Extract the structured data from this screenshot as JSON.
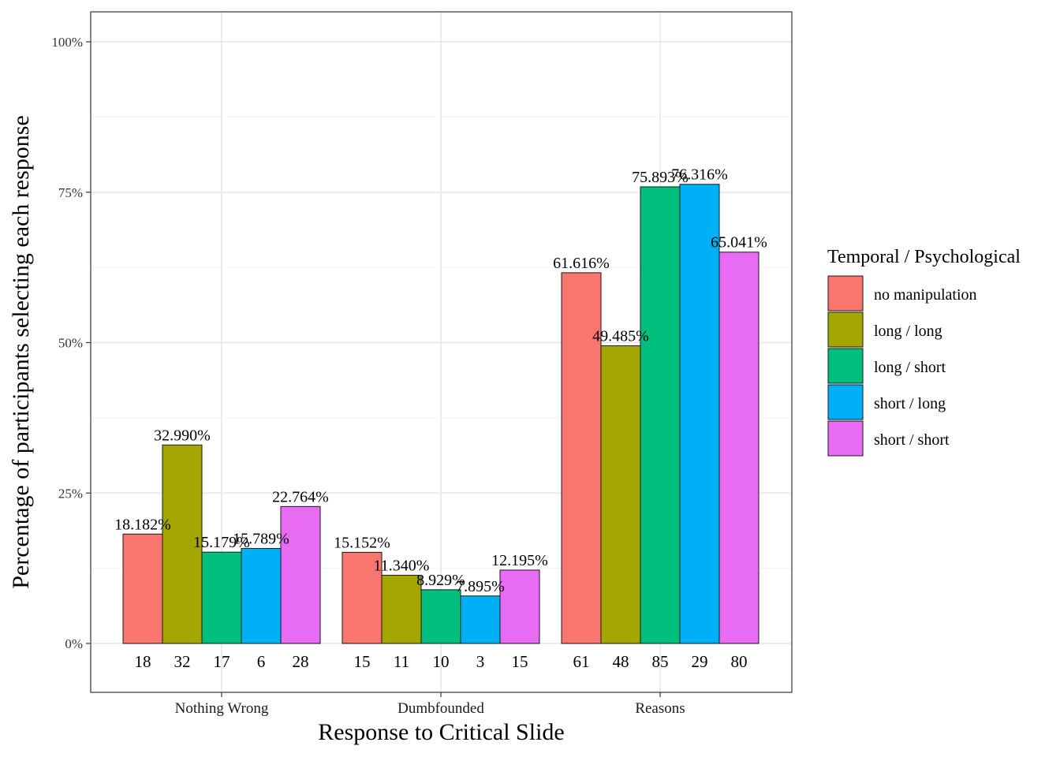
{
  "chart_data": {
    "type": "bar",
    "xlabel": "Response to Critical Slide",
    "ylabel": "Percentage of participants selecting each response",
    "ylim": [
      0,
      100
    ],
    "y_ticks": [
      "0%",
      "25%",
      "50%",
      "75%",
      "100%"
    ],
    "y_tick_values": [
      0,
      25,
      50,
      75,
      100
    ],
    "grid": true,
    "legend_position": "right",
    "legend_title": "Temporal / Psychological",
    "categories": [
      "Nothing Wrong",
      "Dumbfounded",
      "Reasons"
    ],
    "series": [
      {
        "name": "no manipulation",
        "color": "#F8766D",
        "values": [
          18.182,
          15.152,
          61.616
        ],
        "labels": [
          "18.182%",
          "15.152%",
          "61.616%"
        ],
        "counts": [
          "18",
          "15",
          "61"
        ]
      },
      {
        "name": "long / long",
        "color": "#A3A500",
        "values": [
          32.99,
          11.34,
          49.485
        ],
        "labels": [
          "32.990%",
          "11.340%",
          "49.485%"
        ],
        "counts": [
          "32",
          "11",
          "48"
        ]
      },
      {
        "name": "long / short",
        "color": "#00BF7D",
        "values": [
          15.179,
          8.929,
          75.893
        ],
        "labels": [
          "15.179%",
          "8.929%",
          "75.893%"
        ],
        "counts": [
          "17",
          "10",
          "85"
        ]
      },
      {
        "name": "short / long",
        "color": "#00B0F6",
        "values": [
          15.789,
          7.895,
          76.316
        ],
        "labels": [
          "15.789%",
          "7.895%",
          "76.316%"
        ],
        "counts": [
          "6",
          "3",
          "29"
        ]
      },
      {
        "name": "short / short",
        "color": "#E76BF3",
        "values": [
          22.764,
          12.195,
          65.041
        ],
        "labels": [
          "22.764%",
          "12.195%",
          "65.041%"
        ],
        "counts": [
          "28",
          "15",
          "80"
        ]
      }
    ]
  }
}
